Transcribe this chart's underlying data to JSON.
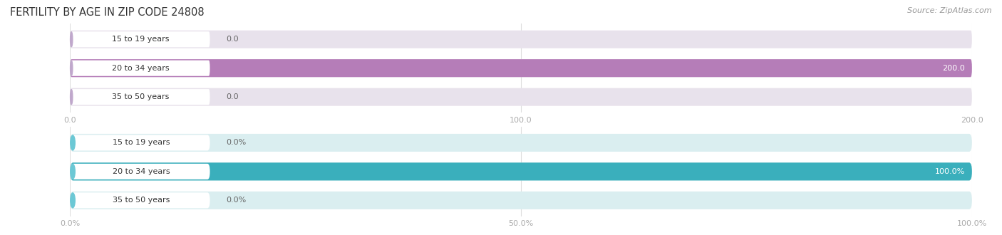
{
  "title": "FERTILITY BY AGE IN ZIP CODE 24808",
  "source": "Source: ZipAtlas.com",
  "top_chart": {
    "categories": [
      "15 to 19 years",
      "20 to 34 years",
      "35 to 50 years"
    ],
    "values": [
      0.0,
      200.0,
      0.0
    ],
    "bar_color": "#b57db8",
    "bar_bg_color": "#e8e2ec",
    "label_pill_color": "#ddd5e5",
    "label_circle_color": "#c0a8cc",
    "xlim": [
      0,
      200
    ],
    "xticks": [
      0.0,
      100.0,
      200.0
    ],
    "xtick_labels": [
      "0.0",
      "100.0",
      "200.0"
    ],
    "value_labels": [
      "0.0",
      "200.0",
      "0.0"
    ]
  },
  "bottom_chart": {
    "categories": [
      "15 to 19 years",
      "20 to 34 years",
      "35 to 50 years"
    ],
    "values": [
      0.0,
      100.0,
      0.0
    ],
    "bar_color": "#3aafbc",
    "bar_bg_color": "#daeef0",
    "label_pill_color": "#d0eaee",
    "label_circle_color": "#6cc8d5",
    "xlim": [
      0,
      100
    ],
    "xticks": [
      0.0,
      50.0,
      100.0
    ],
    "xtick_labels": [
      "0.0%",
      "50.0%",
      "100.0%"
    ],
    "value_labels": [
      "0.0%",
      "100.0%",
      "0.0%"
    ]
  },
  "label_fontsize": 8.0,
  "tick_fontsize": 8.0,
  "title_fontsize": 10.5,
  "source_fontsize": 8.0,
  "bar_height": 0.62
}
